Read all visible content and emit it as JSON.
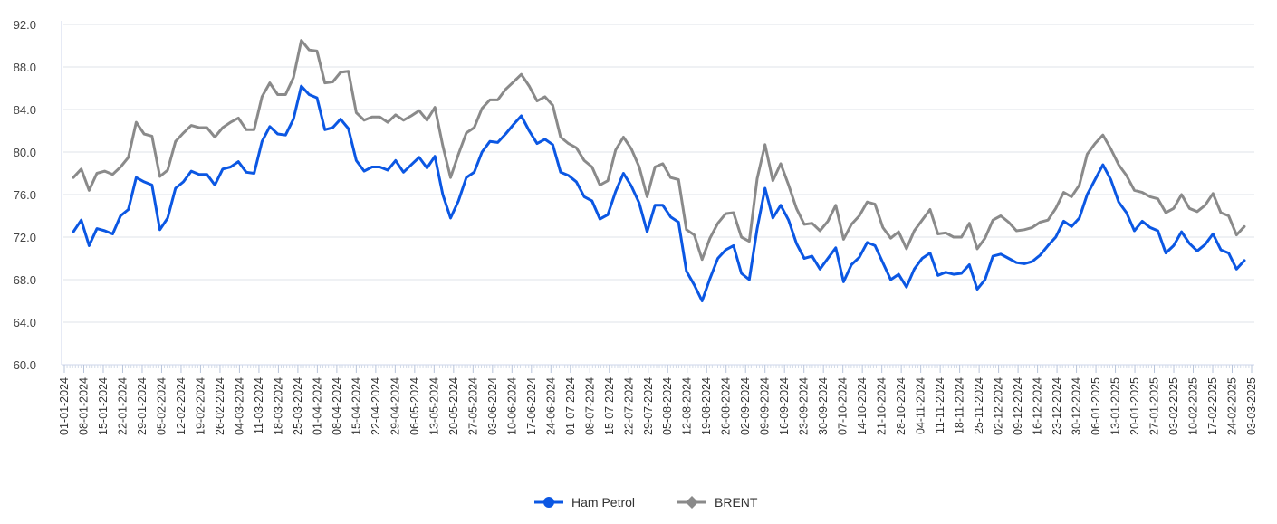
{
  "chart_data": {
    "type": "line",
    "title": "",
    "xlabel": "",
    "ylabel": "",
    "ylim": [
      60,
      92
    ],
    "y_ticks": [
      "60.0",
      "64.0",
      "68.0",
      "72.0",
      "76.0",
      "80.0",
      "84.0",
      "88.0",
      "92.0"
    ],
    "x_tick_labels": [
      "01-01-2024",
      "08-01-2024",
      "15-01-2024",
      "22-01-2024",
      "29-01-2024",
      "05-02-2024",
      "12-02-2024",
      "19-02-2024",
      "26-02-2024",
      "04-03-2024",
      "11-03-2024",
      "18-03-2024",
      "25-03-2024",
      "01-04-2024",
      "08-04-2024",
      "15-04-2024",
      "22-04-2024",
      "29-04-2024",
      "06-05-2024",
      "13-05-2024",
      "20-05-2024",
      "27-05-2024",
      "03-06-2024",
      "10-06-2024",
      "17-06-2024",
      "24-06-2024",
      "01-07-2024",
      "08-07-2024",
      "15-07-2024",
      "22-07-2024",
      "29-07-2024",
      "05-08-2024",
      "12-08-2024",
      "19-08-2024",
      "26-08-2024",
      "02-09-2024",
      "09-09-2024",
      "16-09-2024",
      "23-09-2024",
      "30-09-2024",
      "07-10-2024",
      "14-10-2024",
      "21-10-2024",
      "28-10-2024",
      "04-11-2024",
      "11-11-2024",
      "18-11-2024",
      "25-11-2024",
      "02-12-2024",
      "09-12-2024",
      "16-12-2024",
      "23-12-2024",
      "30-12-2024",
      "06-01-2025",
      "13-01-2025",
      "20-01-2025",
      "27-01-2025",
      "03-02-2025",
      "10-02-2025",
      "17-02-2025",
      "24-02-2025",
      "03-03-2025"
    ],
    "grid": true,
    "legend": "bottom-center",
    "series": [
      {
        "name": "Ham Petrol",
        "color": "#0b57e3",
        "marker": "circle",
        "values": [
          72.5,
          73.6,
          71.2,
          72.8,
          72.6,
          72.3,
          74.0,
          74.6,
          77.6,
          77.2,
          76.9,
          72.7,
          73.8,
          76.6,
          77.2,
          78.2,
          77.9,
          77.9,
          76.9,
          78.4,
          78.6,
          79.1,
          78.1,
          78.0,
          81.0,
          82.4,
          81.7,
          81.6,
          83.1,
          86.2,
          85.4,
          85.1,
          82.1,
          82.3,
          83.1,
          82.2,
          79.2,
          78.2,
          78.6,
          78.6,
          78.3,
          79.2,
          78.1,
          78.8,
          79.5,
          78.5,
          79.6,
          76.0,
          73.8,
          75.4,
          77.6,
          78.1,
          80.0,
          81.0,
          80.9,
          81.7,
          82.6,
          83.4,
          82.0,
          80.8,
          81.2,
          80.7,
          78.1,
          77.8,
          77.2,
          75.8,
          75.4,
          73.7,
          74.1,
          76.3,
          78.0,
          76.8,
          75.2,
          72.5,
          75.0,
          75.0,
          73.9,
          73.4,
          68.8,
          67.5,
          66.0,
          68.1,
          70.0,
          70.8,
          71.2,
          68.6,
          68.0,
          72.8,
          76.6,
          73.8,
          75.0,
          73.6,
          71.4,
          70.0,
          70.2,
          69.0,
          70.0,
          71.0,
          67.8,
          69.4,
          70.1,
          71.5,
          71.2,
          69.6,
          68.0,
          68.5,
          67.3,
          69.0,
          70.0,
          70.5,
          68.4,
          68.7,
          68.5,
          68.6,
          69.4,
          67.1,
          68.0,
          70.2,
          70.4,
          70.0,
          69.6,
          69.5,
          69.7,
          70.3,
          71.2,
          72.0,
          73.5,
          73.0,
          73.8,
          76.0,
          77.4,
          78.8,
          77.4,
          75.3,
          74.3,
          72.6,
          73.5,
          72.9,
          72.6,
          70.5,
          71.2,
          72.5,
          71.4,
          70.7,
          71.3,
          72.3,
          70.8,
          70.5,
          69.0,
          69.8
        ]
      },
      {
        "name": "BRENT",
        "color": "#8a8a8a",
        "marker": "diamond",
        "values": [
          77.6,
          78.4,
          76.4,
          78.0,
          78.2,
          77.9,
          78.6,
          79.5,
          82.8,
          81.7,
          81.5,
          77.7,
          78.3,
          81.0,
          81.8,
          82.5,
          82.3,
          82.3,
          81.4,
          82.3,
          82.8,
          83.2,
          82.1,
          82.1,
          85.2,
          86.5,
          85.4,
          85.4,
          87.0,
          90.5,
          89.6,
          89.5,
          86.5,
          86.6,
          87.5,
          87.6,
          83.7,
          83.0,
          83.3,
          83.3,
          82.8,
          83.5,
          83.0,
          83.4,
          83.9,
          83.0,
          84.2,
          80.6,
          77.6,
          79.8,
          81.8,
          82.3,
          84.1,
          84.9,
          84.9,
          85.9,
          86.6,
          87.3,
          86.2,
          84.8,
          85.2,
          84.4,
          81.4,
          80.8,
          80.4,
          79.2,
          78.6,
          76.9,
          77.3,
          80.2,
          81.4,
          80.3,
          78.6,
          75.8,
          78.6,
          78.9,
          77.6,
          77.4,
          72.7,
          72.2,
          69.9,
          71.9,
          73.3,
          74.2,
          74.3,
          72.0,
          71.6,
          77.5,
          80.7,
          77.3,
          78.9,
          76.9,
          74.7,
          73.2,
          73.3,
          72.6,
          73.5,
          75.0,
          71.8,
          73.2,
          74.0,
          75.3,
          75.1,
          72.9,
          71.9,
          72.5,
          70.9,
          72.6,
          73.6,
          74.6,
          72.3,
          72.4,
          72.0,
          72.0,
          73.3,
          70.9,
          71.9,
          73.6,
          74.0,
          73.4,
          72.6,
          72.7,
          72.9,
          73.4,
          73.6,
          74.7,
          76.2,
          75.8,
          76.9,
          79.8,
          80.8,
          81.6,
          80.3,
          78.8,
          77.8,
          76.4,
          76.2,
          75.8,
          75.6,
          74.3,
          74.7,
          76.0,
          74.7,
          74.4,
          75.0,
          76.1,
          74.3,
          74.0,
          72.2,
          73.0
        ]
      }
    ]
  }
}
